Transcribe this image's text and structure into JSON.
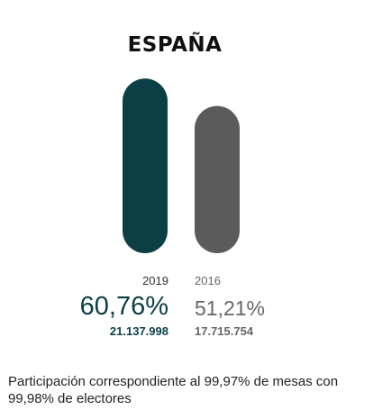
{
  "title": "ESPAÑA",
  "chart_data": {
    "type": "bar",
    "title": "ESPAÑA",
    "categories": [
      "2019",
      "2016"
    ],
    "values": [
      60.76,
      51.21
    ],
    "value_labels": [
      "60,76%",
      "51,21%"
    ],
    "votes": [
      "21.137.998",
      "17.715.754"
    ],
    "colors": [
      "#0b3f45",
      "#5b5b5b"
    ],
    "ylim": [
      0,
      100
    ],
    "grid": false,
    "legend": "none"
  },
  "labels": [
    {
      "year": "2019",
      "pct": "60,76%",
      "votes": "21.137.998"
    },
    {
      "year": "2016",
      "pct": "51,21%",
      "votes": "17.715.754"
    }
  ],
  "footnote": "Participación correspondiente al 99,97% de mesas con 99,98% de electores"
}
